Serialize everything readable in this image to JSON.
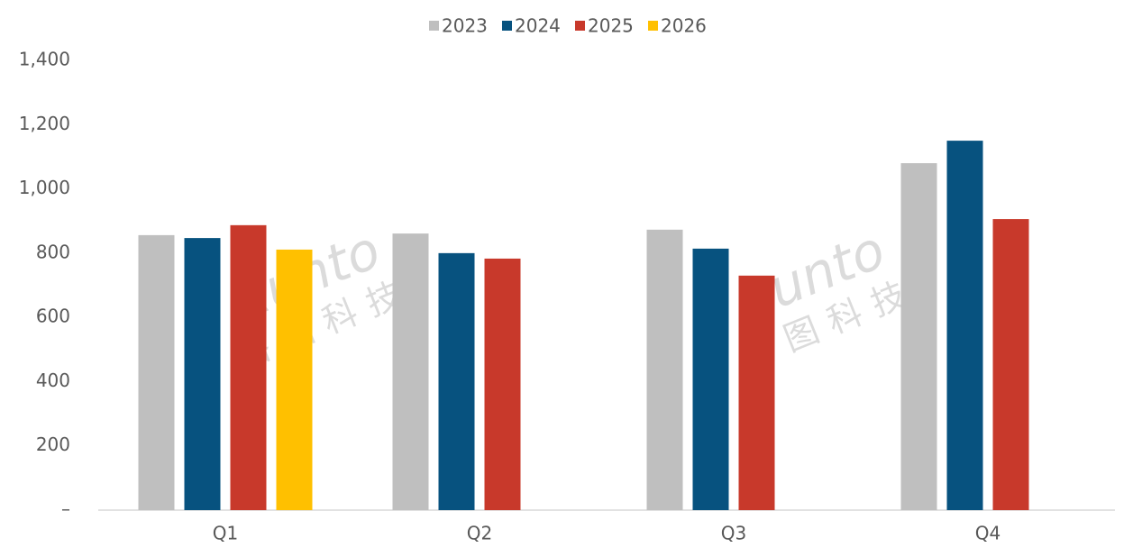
{
  "chart_data": {
    "type": "bar",
    "watermark": [
      "Runto",
      "洛图科技"
    ],
    "categories": [
      "Q1",
      "Q2",
      "Q3",
      "Q4"
    ],
    "series": [
      {
        "name": "2023",
        "color": "#bfbfbf",
        "values": [
          856,
          861,
          873,
          1080
        ]
      },
      {
        "name": "2024",
        "color": "#07527f",
        "values": [
          847,
          800,
          814,
          1150
        ]
      },
      {
        "name": "2025",
        "color": "#c8392b",
        "values": [
          887,
          783,
          730,
          906
        ]
      },
      {
        "name": "2026",
        "color": "#ffc000",
        "values": [
          811,
          null,
          null,
          null
        ]
      }
    ],
    "ylim": [
      0,
      1400
    ],
    "yticks": [
      {
        "value": 0,
        "label": "–"
      },
      200,
      400,
      600,
      800,
      {
        "value": 1000,
        "label": "1,000"
      },
      {
        "value": 1200,
        "label": "1,200"
      },
      {
        "value": 1400,
        "label": "1,400"
      }
    ],
    "grid": false,
    "legend": "top"
  }
}
